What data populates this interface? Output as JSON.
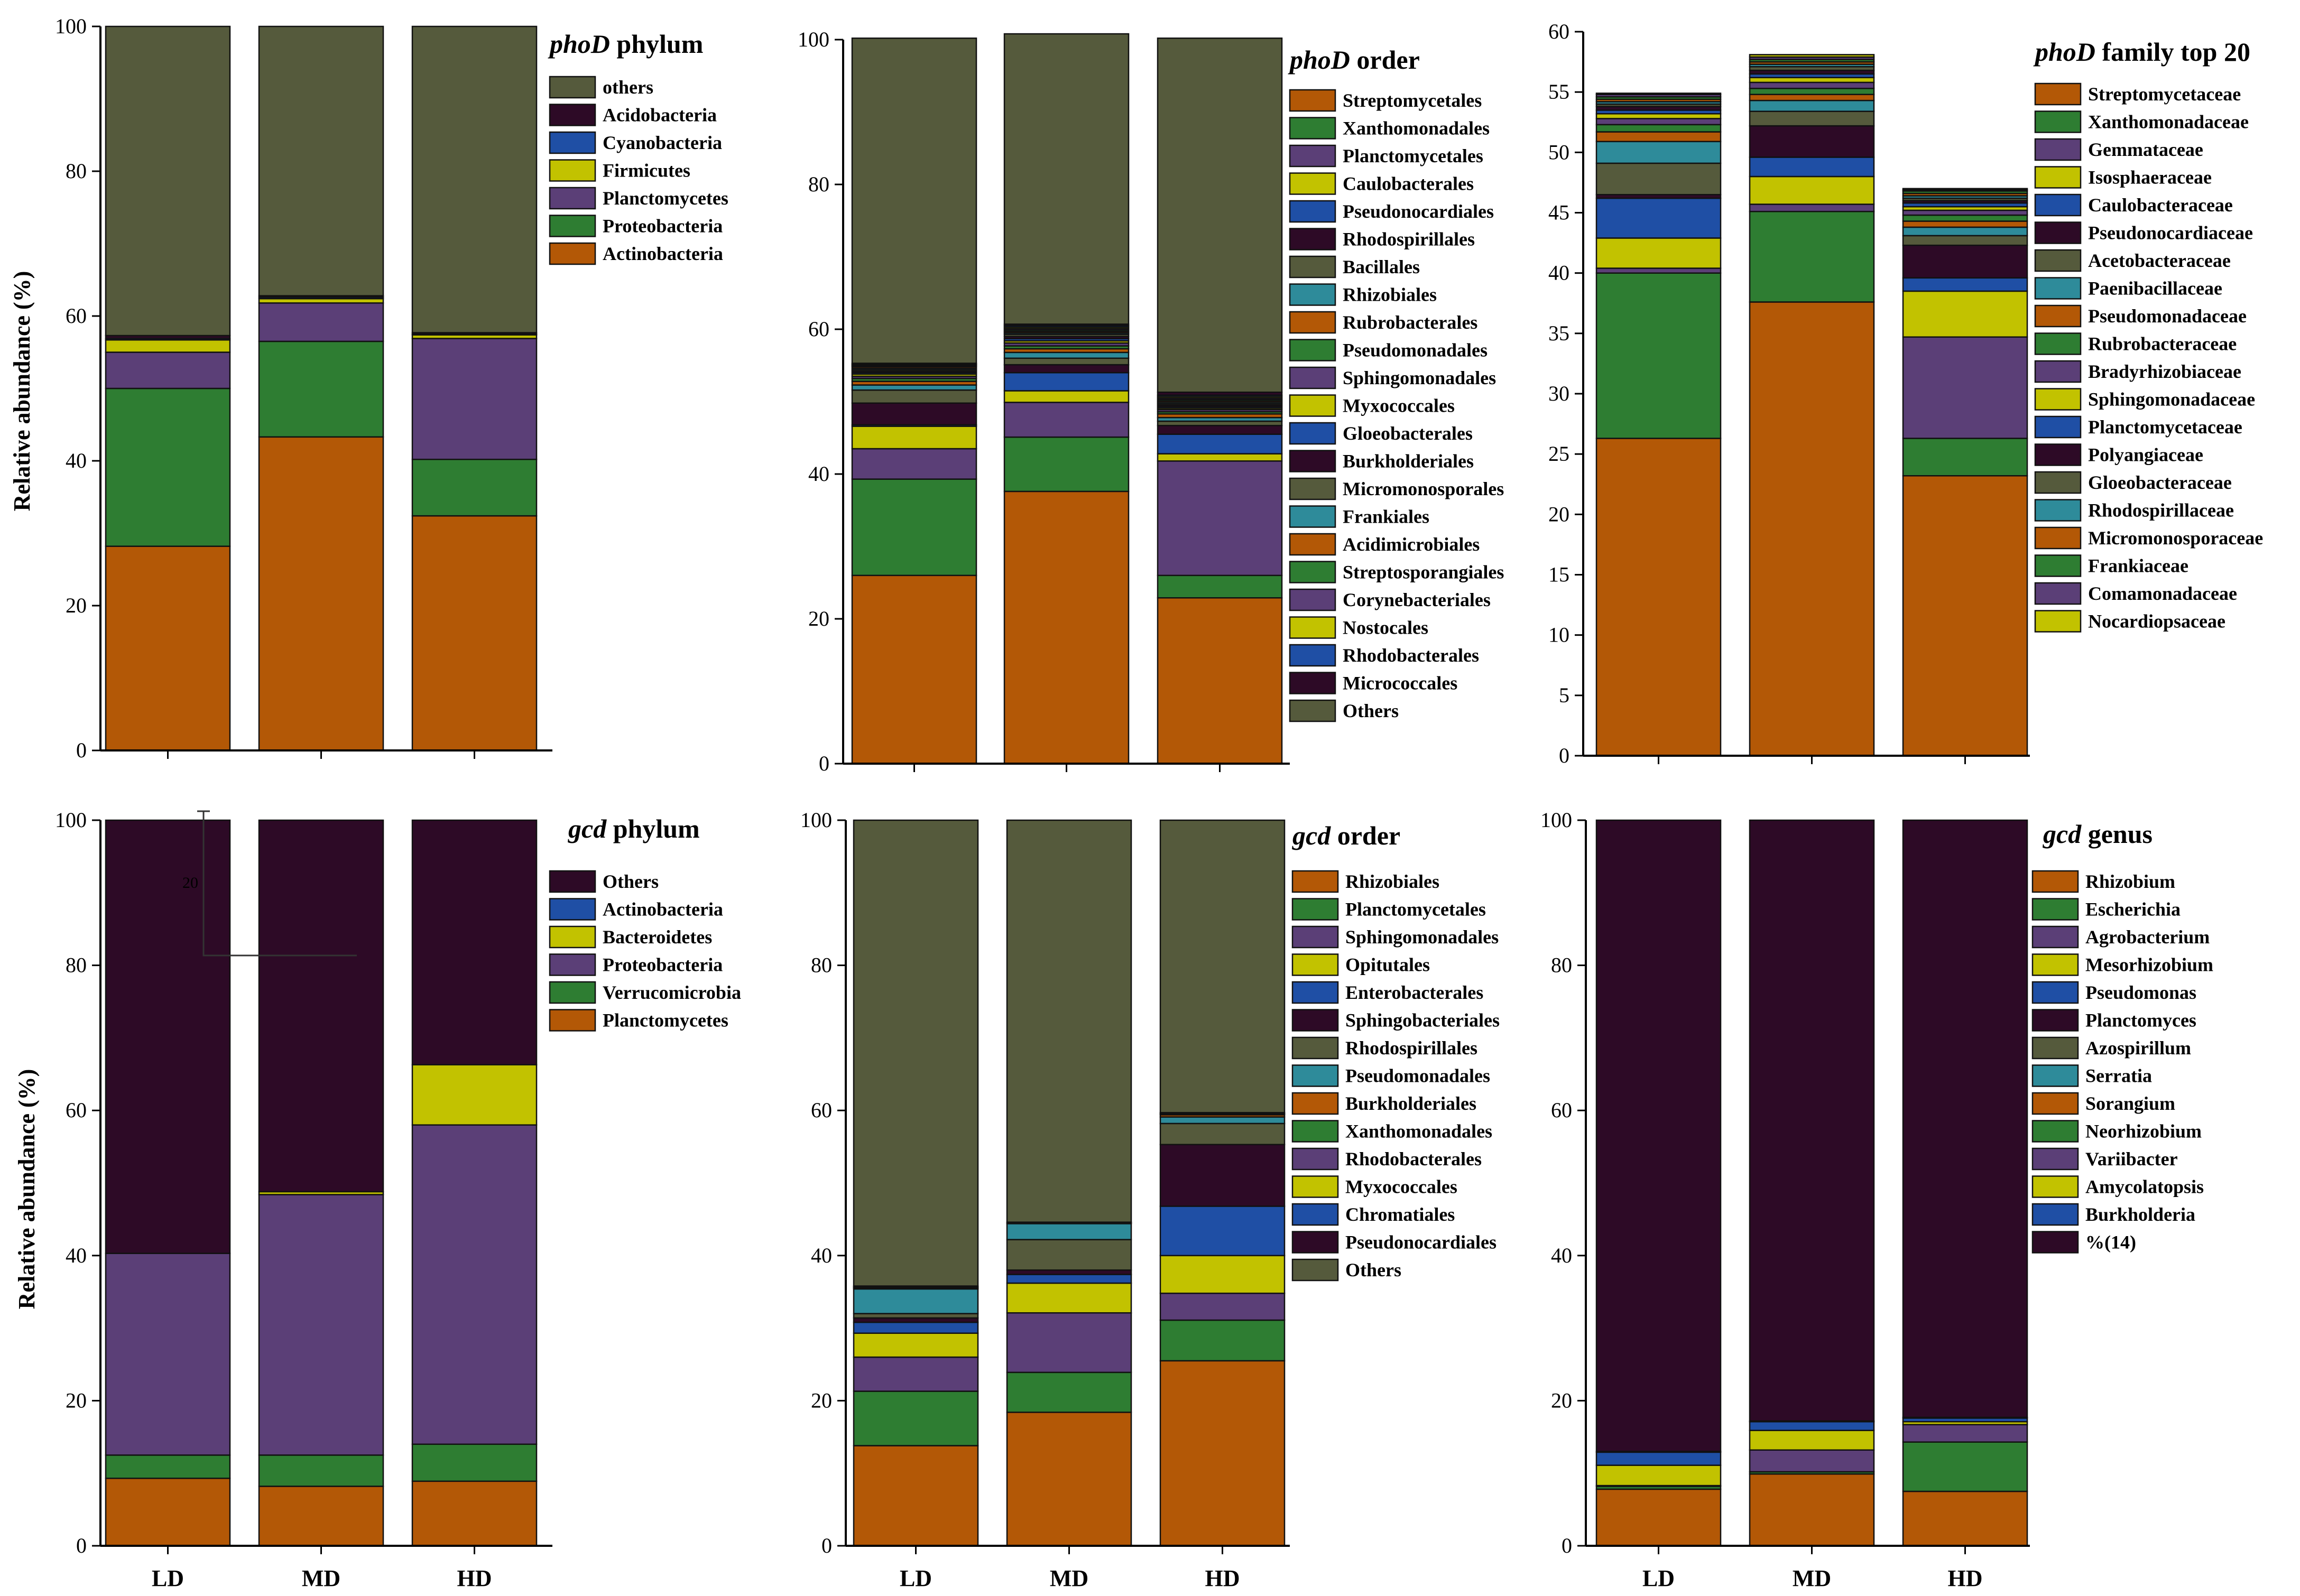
{
  "figure": {
    "ylabel_top": "Relative abundance (%)",
    "ylabel_bottom": "Relative abundance (%)",
    "stray_annotation": "20"
  },
  "chart_data": [
    {
      "type": "bar",
      "stacked": true,
      "title_italic": "phoD",
      "title_rest": " phylum",
      "categories": [
        "LD",
        "MD",
        "HD"
      ],
      "xlabels_shown": false,
      "ylim": [
        0,
        100
      ],
      "yticks": [
        0,
        20,
        40,
        60,
        80,
        100
      ],
      "ylabel": "Relative abundance (%)",
      "legend_order": [
        "others",
        "Acidobacteria",
        "Cyanobacteria",
        "Firmicutes",
        "Planctomycetes",
        "Proteobacteria",
        "Actinobacteria"
      ],
      "series": [
        {
          "name": "Actinobacteria",
          "color": "#B35806",
          "values": [
            28.2,
            43.3,
            32.4
          ]
        },
        {
          "name": "Proteobacteria",
          "color": "#2E7D32",
          "values": [
            21.8,
            13.2,
            7.8
          ]
        },
        {
          "name": "Planctomycetes",
          "color": "#5B3F77",
          "values": [
            5.0,
            5.3,
            16.7
          ]
        },
        {
          "name": "Firmicutes",
          "color": "#C2C200",
          "values": [
            1.7,
            0.6,
            0.5
          ]
        },
        {
          "name": "Cyanobacteria",
          "color": "#1F4FA5",
          "values": [
            0.2,
            0.2,
            0.1
          ]
        },
        {
          "name": "Acidobacteria",
          "color": "#2D0A26",
          "values": [
            0.4,
            0.2,
            0.2
          ]
        },
        {
          "name": "others",
          "color": "#555A3C",
          "values": [
            42.7,
            37.2,
            42.3
          ]
        }
      ]
    },
    {
      "type": "bar",
      "stacked": true,
      "title_italic": "phoD",
      "title_rest": " order",
      "categories": [
        "LD",
        "MD",
        "HD"
      ],
      "xlabels_shown": false,
      "ylim": [
        0,
        100
      ],
      "yticks": [
        0,
        20,
        40,
        60,
        80,
        100
      ],
      "legend_order": [
        "Streptomycetales",
        "Xanthomonadales",
        "Planctomycetales",
        "Caulobacterales",
        "Pseudonocardiales",
        "Rhodospirillales",
        "Bacillales",
        "Rhizobiales",
        "Rubrobacterales",
        "Pseudomonadales",
        "Sphingomonadales",
        "Myxococcales",
        "Gloeobacterales",
        "Burkholderiales",
        "Micromonosporales",
        "Frankiales",
        "Acidimicrobiales",
        "Streptosporangiales",
        "Corynebacteriales",
        "Nostocales",
        "Rhodobacterales",
        "Micrococcales",
        "Others"
      ],
      "series": [
        {
          "name": "Streptomycetales",
          "color": "#B35806",
          "values": [
            26.0,
            37.6,
            22.9
          ]
        },
        {
          "name": "Xanthomonadales",
          "color": "#2E7D32",
          "values": [
            13.3,
            7.5,
            3.1
          ]
        },
        {
          "name": "Planctomycetales",
          "color": "#5B3F77",
          "values": [
            4.2,
            4.8,
            15.8
          ]
        },
        {
          "name": "Caulobacterales",
          "color": "#C2C200",
          "values": [
            3.1,
            1.6,
            1.0
          ]
        },
        {
          "name": "Pseudonocardiales",
          "color": "#1F4FA5",
          "values": [
            0.2,
            2.5,
            2.7
          ]
        },
        {
          "name": "Rhodospirillales",
          "color": "#2D0A26",
          "values": [
            3.0,
            1.1,
            1.2
          ]
        },
        {
          "name": "Bacillales",
          "color": "#555A3C",
          "values": [
            1.8,
            0.9,
            0.6
          ]
        },
        {
          "name": "Rhizobiales",
          "color": "#2E8B9A",
          "values": [
            0.7,
            0.8,
            0.5
          ]
        },
        {
          "name": "Rubrobacterales",
          "color": "#B35806",
          "values": [
            0.5,
            0.5,
            0.5
          ]
        },
        {
          "name": "Pseudomonadales",
          "color": "#2E7D32",
          "values": [
            0.4,
            0.4,
            0.3
          ]
        },
        {
          "name": "Sphingomonadales",
          "color": "#5B3F77",
          "values": [
            0.3,
            0.4,
            0.3
          ]
        },
        {
          "name": "Myxococcales",
          "color": "#C2C200",
          "values": [
            0.3,
            0.3,
            0.2
          ]
        },
        {
          "name": "Gloeobacterales",
          "color": "#1F4FA5",
          "values": [
            0.2,
            0.3,
            0.2
          ]
        },
        {
          "name": "Burkholderiales",
          "color": "#2D0A26",
          "values": [
            0.2,
            0.3,
            0.2
          ]
        },
        {
          "name": "Micromonosporales",
          "color": "#555A3C",
          "values": [
            0.2,
            0.3,
            0.2
          ]
        },
        {
          "name": "Frankiales",
          "color": "#2E8B9A",
          "values": [
            0.2,
            0.2,
            0.2
          ]
        },
        {
          "name": "Acidimicrobiales",
          "color": "#B35806",
          "values": [
            0.2,
            0.2,
            0.2
          ]
        },
        {
          "name": "Streptosporangiales",
          "color": "#2E7D32",
          "values": [
            0.1,
            0.2,
            0.2
          ]
        },
        {
          "name": "Corynebacteriales",
          "color": "#5B3F77",
          "values": [
            0.1,
            0.2,
            0.2
          ]
        },
        {
          "name": "Nostocales",
          "color": "#C2C200",
          "values": [
            0.1,
            0.2,
            0.2
          ]
        },
        {
          "name": "Rhodobacterales",
          "color": "#1F4FA5",
          "values": [
            0.1,
            0.2,
            0.2
          ]
        },
        {
          "name": "Micrococcales",
          "color": "#2D0A26",
          "values": [
            0.1,
            0.2,
            0.4
          ]
        },
        {
          "name": "Others",
          "color": "#555A3C",
          "values": [
            44.9,
            40.1,
            48.9
          ]
        }
      ]
    },
    {
      "type": "bar",
      "stacked": true,
      "title_italic": "phoD",
      "title_rest": " family top 20",
      "categories": [
        "LD",
        "MD",
        "HD"
      ],
      "xlabels_shown": false,
      "ylim": [
        0,
        60
      ],
      "yticks": [
        0,
        5,
        10,
        15,
        20,
        25,
        30,
        35,
        40,
        45,
        50,
        55,
        60
      ],
      "legend_order": [
        "Streptomycetaceae",
        "Xanthomonadaceae",
        "Gemmataceae",
        "Isosphaeraceae",
        "Caulobacteraceae",
        "Pseudonocardiaceae",
        "Acetobacteraceae",
        "Paenibacillaceae",
        "Pseudomonadaceae",
        "Rubrobacteraceae",
        "Bradyrhizobiaceae",
        "Sphingomonadaceae",
        "Planctomycetaceae",
        "Polyangiaceae",
        "Gloeobacteraceae",
        "Rhodospirillaceae",
        "Micromonosporaceae",
        "Frankiaceae",
        "Comamonadaceae",
        "Nocardiopsaceae"
      ],
      "series": [
        {
          "name": "Streptomycetaceae",
          "color": "#B35806",
          "values": [
            26.3,
            37.6,
            23.2
          ]
        },
        {
          "name": "Xanthomonadaceae",
          "color": "#2E7D32",
          "values": [
            13.7,
            7.5,
            3.1
          ]
        },
        {
          "name": "Gemmataceae",
          "color": "#5B3F77",
          "values": [
            0.4,
            0.6,
            8.4
          ]
        },
        {
          "name": "Isosphaeraceae",
          "color": "#C2C200",
          "values": [
            2.5,
            2.3,
            3.8
          ]
        },
        {
          "name": "Caulobacteraceae",
          "color": "#1F4FA5",
          "values": [
            3.3,
            1.6,
            1.1
          ]
        },
        {
          "name": "Pseudonocardiaceae",
          "color": "#2D0A26",
          "values": [
            0.3,
            2.6,
            2.7
          ]
        },
        {
          "name": "Acetobacteraceae",
          "color": "#555A3C",
          "values": [
            2.6,
            1.2,
            0.8
          ]
        },
        {
          "name": "Paenibacillaceae",
          "color": "#2E8B9A",
          "values": [
            1.8,
            0.9,
            0.7
          ]
        },
        {
          "name": "Pseudomonadaceae",
          "color": "#B35806",
          "values": [
            0.8,
            0.5,
            0.5
          ]
        },
        {
          "name": "Rubrobacteraceae",
          "color": "#2E7D32",
          "values": [
            0.6,
            0.5,
            0.5
          ]
        },
        {
          "name": "Bradyrhizobiaceae",
          "color": "#5B3F77",
          "values": [
            0.5,
            0.5,
            0.4
          ]
        },
        {
          "name": "Sphingomonadaceae",
          "color": "#C2C200",
          "values": [
            0.4,
            0.4,
            0.3
          ]
        },
        {
          "name": "Planctomycetaceae",
          "color": "#1F4FA5",
          "values": [
            0.3,
            0.3,
            0.3
          ]
        },
        {
          "name": "Polyangiaceae",
          "color": "#2D0A26",
          "values": [
            0.3,
            0.3,
            0.2
          ]
        },
        {
          "name": "Gloeobacteraceae",
          "color": "#555A3C",
          "values": [
            0.2,
            0.3,
            0.2
          ]
        },
        {
          "name": "Rhodospirillaceae",
          "color": "#2E8B9A",
          "values": [
            0.2,
            0.2,
            0.2
          ]
        },
        {
          "name": "Micromonosporaceae",
          "color": "#B35806",
          "values": [
            0.2,
            0.2,
            0.2
          ]
        },
        {
          "name": "Frankiaceae",
          "color": "#2E7D32",
          "values": [
            0.2,
            0.2,
            0.2
          ]
        },
        {
          "name": "Comamonadaceae",
          "color": "#5B3F77",
          "values": [
            0.2,
            0.2,
            0.1
          ]
        },
        {
          "name": "Nocardiopsaceae",
          "color": "#C2C200",
          "values": [
            0.1,
            0.2,
            0.1
          ]
        }
      ]
    },
    {
      "type": "bar",
      "stacked": true,
      "title_italic": "gcd",
      "title_rest": " phylum",
      "categories": [
        "LD",
        "MD",
        "HD"
      ],
      "xlabels_shown": true,
      "ylim": [
        0,
        100
      ],
      "yticks": [
        0,
        20,
        40,
        60,
        80,
        100
      ],
      "ylabel": "Relative abundance (%)",
      "legend_order": [
        "Others",
        "Actinobacteria",
        "Bacteroidetes",
        "Proteobacteria",
        "Verrucomicrobia",
        "Planctomycetes"
      ],
      "series": [
        {
          "name": "Planctomycetes",
          "color": "#B35806",
          "values": [
            9.3,
            8.2,
            8.9
          ]
        },
        {
          "name": "Verrucomicrobia",
          "color": "#2E7D32",
          "values": [
            3.2,
            4.3,
            5.1
          ]
        },
        {
          "name": "Proteobacteria",
          "color": "#5B3F77",
          "values": [
            27.8,
            35.9,
            44.0
          ]
        },
        {
          "name": "Bacteroidetes",
          "color": "#C2C200",
          "values": [
            0.0,
            0.4,
            8.3
          ]
        },
        {
          "name": "Actinobacteria",
          "color": "#1F4FA5",
          "values": [
            0.0,
            0.0,
            0.0
          ]
        },
        {
          "name": "Others",
          "color": "#2D0A26",
          "values": [
            59.7,
            51.2,
            33.7
          ]
        }
      ]
    },
    {
      "type": "bar",
      "stacked": true,
      "title_italic": "gcd",
      "title_rest": " order",
      "categories": [
        "LD",
        "MD",
        "HD"
      ],
      "xlabels_shown": true,
      "ylim": [
        0,
        100
      ],
      "yticks": [
        0,
        20,
        40,
        60,
        80,
        100
      ],
      "legend_order": [
        "Rhizobiales",
        "Planctomycetales",
        "Sphingomonadales",
        "Opitutales",
        "Enterobacterales",
        "Sphingobacteriales",
        "Rhodospirillales",
        "Pseudomonadales",
        "Burkholderiales",
        "Xanthomonadales",
        "Rhodobacterales",
        "Myxococcales",
        "Chromatiales",
        "Pseudonocardiales",
        "Others"
      ],
      "series": [
        {
          "name": "Rhizobiales",
          "color": "#B35806",
          "values": [
            13.8,
            18.4,
            25.5
          ]
        },
        {
          "name": "Planctomycetales",
          "color": "#2E7D32",
          "values": [
            7.5,
            5.5,
            5.6
          ]
        },
        {
          "name": "Sphingomonadales",
          "color": "#5B3F77",
          "values": [
            4.7,
            8.2,
            3.7
          ]
        },
        {
          "name": "Opitutales",
          "color": "#C2C200",
          "values": [
            3.3,
            4.1,
            5.2
          ]
        },
        {
          "name": "Enterobacterales",
          "color": "#1F4FA5",
          "values": [
            1.5,
            1.2,
            6.8
          ]
        },
        {
          "name": "Sphingobacteriales",
          "color": "#2D0A26",
          "values": [
            0.6,
            0.6,
            8.5
          ]
        },
        {
          "name": "Rhodospirillales",
          "color": "#555A3C",
          "values": [
            0.6,
            4.2,
            2.9
          ]
        },
        {
          "name": "Pseudomonadales",
          "color": "#2E8B9A",
          "values": [
            3.4,
            2.2,
            0.9
          ]
        },
        {
          "name": "Burkholderiales",
          "color": "#B35806",
          "values": [
            0.1,
            0.1,
            0.3
          ]
        },
        {
          "name": "Xanthomonadales",
          "color": "#2E7D32",
          "values": [
            0.1,
            0.1,
            0.1
          ]
        },
        {
          "name": "Rhodobacterales",
          "color": "#5B3F77",
          "values": [
            0.1,
            0.0,
            0.1
          ]
        },
        {
          "name": "Myxococcales",
          "color": "#C2C200",
          "values": [
            0.0,
            0.0,
            0.1
          ]
        },
        {
          "name": "Chromatiales",
          "color": "#1F4FA5",
          "values": [
            0.1,
            0.0,
            0.0
          ]
        },
        {
          "name": "Pseudonocardiales",
          "color": "#2D0A26",
          "values": [
            0.0,
            0.0,
            0.0
          ]
        },
        {
          "name": "Others",
          "color": "#555A3C",
          "values": [
            64.2,
            55.4,
            40.3
          ]
        }
      ]
    },
    {
      "type": "bar",
      "stacked": true,
      "title_italic": "gcd",
      "title_rest": " genus",
      "categories": [
        "LD",
        "MD",
        "HD"
      ],
      "xlabels_shown": true,
      "ylim": [
        0,
        100
      ],
      "yticks": [
        0,
        20,
        40,
        60,
        80,
        100
      ],
      "legend_order": [
        "Rhizobium",
        "Escherichia",
        "Agrobacterium",
        "Mesorhizobium",
        "Pseudomonas",
        "Planctomyces",
        "Azospirillum",
        "Serratia",
        "Sorangium",
        "Neorhizobium",
        "Variibacter",
        "Amycolatopsis",
        "Burkholderia",
        "%(14)"
      ],
      "series": [
        {
          "name": "Rhizobium",
          "color": "#B35806",
          "values": [
            7.8,
            9.9,
            7.5
          ]
        },
        {
          "name": "Escherichia",
          "color": "#2E7D32",
          "values": [
            0.4,
            0.3,
            6.8
          ]
        },
        {
          "name": "Agrobacterium",
          "color": "#5B3F77",
          "values": [
            0.1,
            3.0,
            2.4
          ]
        },
        {
          "name": "Mesorhizobium",
          "color": "#C2C200",
          "values": [
            2.8,
            2.7,
            0.4
          ]
        },
        {
          "name": "Pseudomonas",
          "color": "#1F4FA5",
          "values": [
            1.8,
            1.2,
            0.5
          ]
        },
        {
          "name": "Planctomyces",
          "color": "#2D0A26",
          "values": [
            0.1,
            0.1,
            0.1
          ]
        },
        {
          "name": "Azospirillum",
          "color": "#555A3C",
          "values": [
            0.0,
            0.0,
            0.0
          ]
        },
        {
          "name": "Serratia",
          "color": "#2E8B9A",
          "values": [
            0.0,
            0.0,
            0.0
          ]
        },
        {
          "name": "Sorangium",
          "color": "#B35806",
          "values": [
            0.0,
            0.0,
            0.0
          ]
        },
        {
          "name": "Neorhizobium",
          "color": "#2E7D32",
          "values": [
            0.0,
            0.0,
            0.0
          ]
        },
        {
          "name": "Variibacter",
          "color": "#5B3F77",
          "values": [
            0.0,
            0.0,
            0.0
          ]
        },
        {
          "name": "Amycolatopsis",
          "color": "#C2C200",
          "values": [
            0.0,
            0.0,
            0.0
          ]
        },
        {
          "name": "Burkholderia",
          "color": "#1F4FA5",
          "values": [
            0.0,
            0.0,
            0.0
          ]
        },
        {
          "name": "%(14)",
          "color": "#2D0A26",
          "values": [
            87.0,
            82.8,
            82.3
          ]
        }
      ]
    }
  ]
}
